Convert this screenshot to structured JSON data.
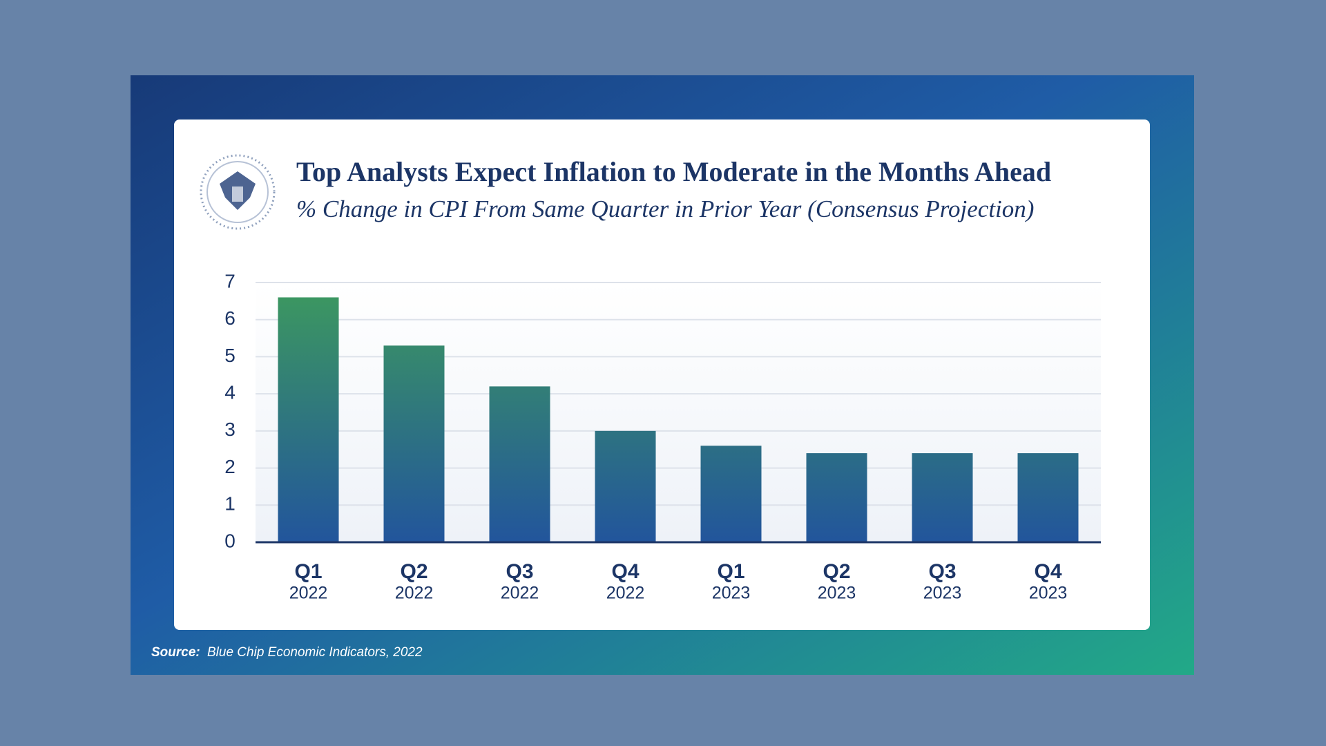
{
  "chart_data": {
    "type": "bar",
    "title": "Top Analysts Expect Inflation to Moderate in the Months Ahead",
    "subtitle": "% Change in CPI From Same Quarter in Prior Year (Consensus Projection)",
    "categories": [
      {
        "quarter": "Q1",
        "year": "2022"
      },
      {
        "quarter": "Q2",
        "year": "2022"
      },
      {
        "quarter": "Q3",
        "year": "2022"
      },
      {
        "quarter": "Q4",
        "year": "2022"
      },
      {
        "quarter": "Q1",
        "year": "2023"
      },
      {
        "quarter": "Q2",
        "year": "2023"
      },
      {
        "quarter": "Q3",
        "year": "2023"
      },
      {
        "quarter": "Q4",
        "year": "2023"
      }
    ],
    "values": [
      6.6,
      5.3,
      4.2,
      3.0,
      2.6,
      2.4,
      2.4,
      2.4
    ],
    "color_top": "#3d9a5e",
    "color_bottom": "#22559c",
    "ylim": [
      0,
      7
    ],
    "yticks": [
      0,
      1,
      2,
      3,
      4,
      5,
      6,
      7
    ],
    "grid": true,
    "source_label": "Source:",
    "source": "Blue Chip Economic Indicators, 2022"
  }
}
